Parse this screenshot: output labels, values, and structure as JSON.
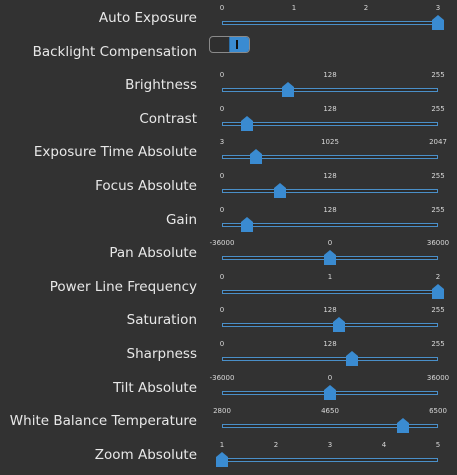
{
  "accent_color": "#3a8bd1",
  "controls": [
    {
      "label": "Auto Exposure",
      "type": "slider",
      "ticks": [
        "0",
        "1",
        "2",
        "3"
      ],
      "min": 0,
      "max": 3,
      "value": 3
    },
    {
      "label": "Backlight Compensation",
      "type": "toggle",
      "value": 1
    },
    {
      "label": "Brightness",
      "type": "slider",
      "ticks": [
        "0",
        "128",
        "255"
      ],
      "min": 0,
      "max": 255,
      "value": 78
    },
    {
      "label": "Contrast",
      "type": "slider",
      "ticks": [
        "0",
        "128",
        "255"
      ],
      "min": 0,
      "max": 255,
      "value": 30
    },
    {
      "label": "Exposure Time Absolute",
      "type": "slider",
      "ticks": [
        "3",
        "1025",
        "2047"
      ],
      "min": 3,
      "max": 2047,
      "value": 325
    },
    {
      "label": "Focus Absolute",
      "type": "slider",
      "ticks": [
        "0",
        "128",
        "255"
      ],
      "min": 0,
      "max": 255,
      "value": 68
    },
    {
      "label": "Gain",
      "type": "slider",
      "ticks": [
        "0",
        "128",
        "255"
      ],
      "min": 0,
      "max": 255,
      "value": 30
    },
    {
      "label": "Pan Absolute",
      "type": "slider",
      "ticks": [
        "-36000",
        "0",
        "36000"
      ],
      "min": -36000,
      "max": 36000,
      "value": 0
    },
    {
      "label": "Power Line Frequency",
      "type": "slider",
      "ticks": [
        "0",
        "1",
        "2"
      ],
      "min": 0,
      "max": 2,
      "value": 2
    },
    {
      "label": "Saturation",
      "type": "slider",
      "ticks": [
        "0",
        "128",
        "255"
      ],
      "min": 0,
      "max": 255,
      "value": 138
    },
    {
      "label": "Sharpness",
      "type": "slider",
      "ticks": [
        "0",
        "128",
        "255"
      ],
      "min": 0,
      "max": 255,
      "value": 154
    },
    {
      "label": "Tilt Absolute",
      "type": "slider",
      "ticks": [
        "-36000",
        "0",
        "36000"
      ],
      "min": -36000,
      "max": 36000,
      "value": 0
    },
    {
      "label": "White Balance Temperature",
      "type": "slider",
      "ticks": [
        "2800",
        "4650",
        "6500"
      ],
      "min": 2800,
      "max": 6500,
      "value": 5900
    },
    {
      "label": "Zoom Absolute",
      "type": "slider",
      "ticks": [
        "1",
        "2",
        "3",
        "4",
        "5"
      ],
      "min": 1,
      "max": 5,
      "value": 1
    }
  ]
}
